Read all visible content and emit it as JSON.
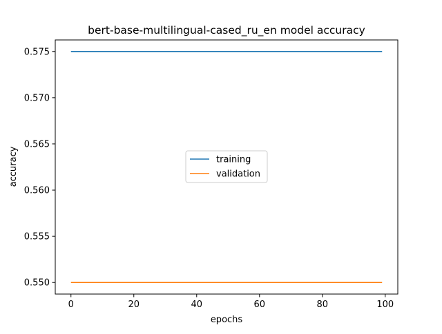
{
  "chart_data": {
    "type": "line",
    "title": "bert-base-multilingual-cased_ru_en model accuracy",
    "xlabel": "epochs",
    "ylabel": "accuracy",
    "xlim": [
      -5,
      104
    ],
    "ylim": [
      0.54875,
      0.57625
    ],
    "xticks": [
      0,
      20,
      40,
      60,
      80,
      100
    ],
    "xtick_labels": [
      "0",
      "20",
      "40",
      "60",
      "80",
      "100"
    ],
    "yticks": [
      0.55,
      0.555,
      0.56,
      0.565,
      0.57,
      0.575
    ],
    "ytick_labels": [
      "0.550",
      "0.555",
      "0.560",
      "0.565",
      "0.570",
      "0.575"
    ],
    "grid": false,
    "legend_position": "center",
    "series": [
      {
        "name": "training",
        "color": "#1f77b4",
        "x": [
          0,
          99
        ],
        "y": [
          0.575,
          0.575
        ]
      },
      {
        "name": "validation",
        "color": "#ff7f0e",
        "x": [
          0,
          99
        ],
        "y": [
          0.55,
          0.55
        ]
      }
    ]
  }
}
